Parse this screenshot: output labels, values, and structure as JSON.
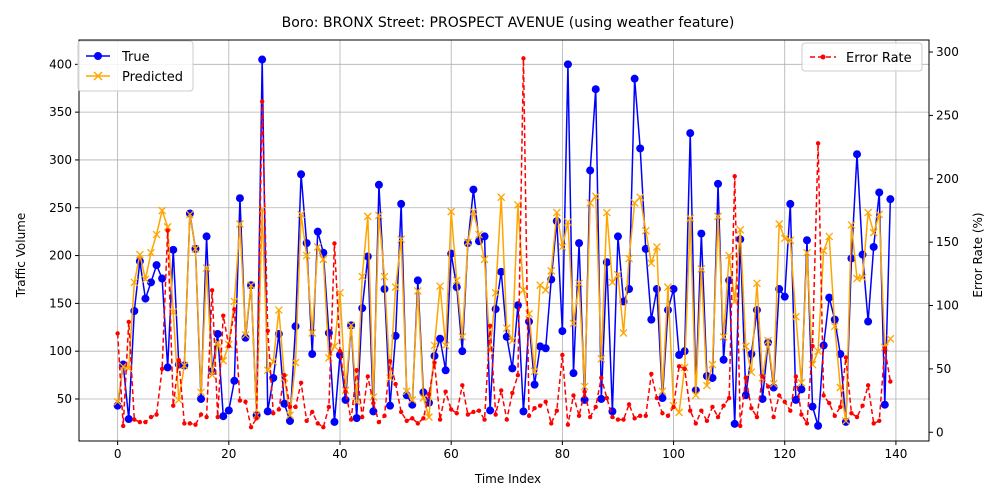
{
  "chart_data": {
    "type": "line",
    "title": "Boro: BRONX Street: PROSPECT AVENUE (using weather feature)",
    "xlabel": "Time Index",
    "ylabel": "Traffic Volume",
    "y2label": "Error Rate (%)",
    "xlim": [
      -6.95,
      145.95
    ],
    "ylim": [
      6.05,
      425.45
    ],
    "y2lim": [
      -6.9,
      309.5
    ],
    "xticks": [
      0,
      20,
      40,
      60,
      80,
      100,
      120,
      140
    ],
    "yticks": [
      50,
      100,
      150,
      200,
      250,
      300,
      350,
      400
    ],
    "y2ticks": [
      0,
      50,
      100,
      150,
      200,
      250,
      300
    ],
    "grid": true,
    "legend_left_placement": "upper-left",
    "legend_right_placement": "upper-right",
    "series": [
      {
        "name": "True",
        "axis": "left",
        "color": "#0000ff",
        "marker": "circle",
        "style": "solid",
        "values": [
          43,
          86,
          29,
          142,
          194,
          155,
          172,
          190,
          176,
          83,
          206,
          86,
          85,
          244,
          207,
          50,
          220,
          79,
          118,
          32,
          38,
          69,
          260,
          114,
          169,
          33,
          405,
          37,
          72,
          118,
          45,
          27,
          126,
          285,
          213,
          97,
          225,
          203,
          119,
          26,
          96,
          49,
          127,
          30,
          145,
          199,
          37,
          274,
          165,
          43,
          116,
          254,
          54,
          44,
          174,
          57,
          46,
          95,
          113,
          80,
          202,
          167,
          100,
          213,
          269,
          215,
          220,
          38,
          144,
          183,
          115,
          82,
          148,
          37,
          131,
          65,
          105,
          103,
          175,
          236,
          121,
          400,
          77,
          213,
          49,
          289,
          374,
          50,
          193,
          37,
          220,
          152,
          165,
          385,
          312,
          207,
          133,
          165,
          51,
          143,
          165,
          96,
          100,
          328,
          59,
          223,
          74,
          72,
          275,
          91,
          174,
          24,
          217,
          54,
          97,
          143,
          50,
          109,
          62,
          165,
          157,
          254,
          49,
          60,
          216,
          42,
          22,
          106,
          156,
          133,
          97,
          26,
          197,
          306,
          201,
          131,
          209,
          266,
          44,
          259
        ]
      },
      {
        "name": "Predicted",
        "axis": "left",
        "color": "#ffa500",
        "marker": "x",
        "style": "solid",
        "values": [
          47,
          84,
          82,
          172,
          201,
          175,
          203,
          222,
          247,
          230,
          141,
          49,
          85,
          243,
          207,
          57,
          187,
          75,
          109,
          90,
          107,
          152,
          233,
          117,
          169,
          33,
          248,
          80,
          89,
          143,
          72,
          33,
          88,
          243,
          200,
          119,
          209,
          196,
          93,
          105,
          161,
          59,
          127,
          47,
          178,
          241,
          52,
          242,
          178,
          72,
          167,
          217,
          58,
          49,
          163,
          51,
          31,
          106,
          168,
          106,
          246,
          174,
          115,
          214,
          246,
          222,
          196,
          101,
          161,
          261,
          124,
          111,
          253,
          164,
          139,
          79,
          169,
          164,
          184,
          245,
          209,
          235,
          129,
          171,
          63,
          255,
          262,
          92,
          245,
          172,
          180,
          119,
          197,
          255,
          261,
          226,
          192,
          209,
          58,
          167,
          43,
          36,
          83,
          239,
          54,
          186,
          64,
          86,
          241,
          115,
          200,
          152,
          227,
          105,
          78,
          171,
          72,
          111,
          66,
          233,
          218,
          216,
          136,
          67,
          203,
          86,
          100,
          205,
          220,
          126,
          62,
          27,
          232,
          176,
          177,
          245,
          224,
          243,
          104,
          113
        ]
      },
      {
        "name": "Error Rate",
        "axis": "right",
        "color": "#ff0000",
        "marker": "dot",
        "style": "dashed",
        "values": [
          78,
          5,
          87,
          10,
          8,
          8,
          12,
          14,
          50,
          159,
          21,
          57,
          7,
          7,
          6,
          14,
          12,
          112,
          12,
          92,
          68,
          97,
          25,
          24,
          4,
          11,
          261,
          80,
          15,
          18,
          45,
          20,
          20,
          39,
          9,
          16,
          7,
          4,
          20,
          149,
          64,
          32,
          10,
          49,
          12,
          44,
          23,
          8,
          13,
          56,
          38,
          16,
          9,
          11,
          7,
          11,
          30,
          55,
          10,
          32,
          18,
          15,
          37,
          14,
          16,
          17,
          10,
          84,
          14,
          33,
          10,
          31,
          45,
          295,
          13,
          19,
          21,
          24,
          7,
          17,
          61,
          6,
          29,
          13,
          32,
          12,
          20,
          43,
          27,
          12,
          10,
          10,
          22,
          11,
          13,
          13,
          46,
          27,
          15,
          13,
          20,
          52,
          50,
          17,
          7,
          17,
          9,
          20,
          12,
          21,
          27,
          202,
          5,
          43,
          19,
          12,
          44,
          36,
          12,
          29,
          24,
          17,
          44,
          14,
          7,
          68,
          228,
          29,
          23,
          13,
          20,
          59,
          15,
          12,
          21,
          37,
          7,
          9,
          66,
          40
        ]
      }
    ]
  }
}
